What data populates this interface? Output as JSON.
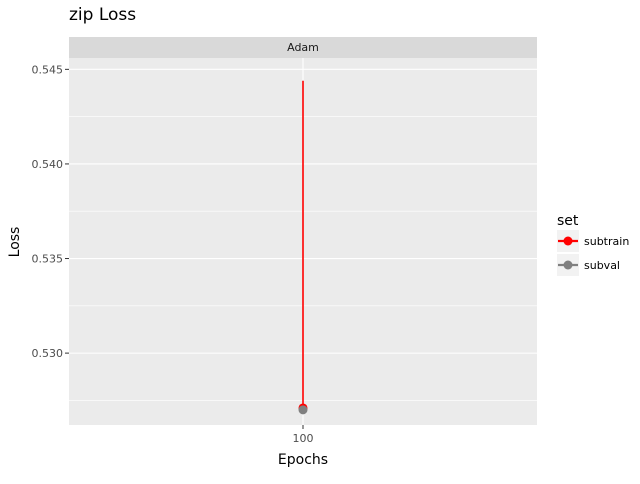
{
  "chart_data": {
    "type": "line",
    "title": "zip Loss",
    "facet_label": "Adam",
    "xlabel": "Epochs",
    "ylabel": "Loss",
    "x_categories": [
      "100"
    ],
    "ylim": [
      0.5262,
      0.5456
    ],
    "y_ticks": [
      0.53,
      0.535,
      0.54,
      0.545
    ],
    "y_tick_labels": [
      "0.530",
      "0.535",
      "0.540",
      "0.545"
    ],
    "grid": true,
    "legend_title": "set",
    "legend_position": "right",
    "series": [
      {
        "name": "subtrain",
        "color": "#ff0000",
        "line": {
          "x": "100",
          "y_from": 0.5444,
          "y_to": 0.5271
        },
        "points": [
          {
            "x": "100",
            "y": 0.5271
          }
        ]
      },
      {
        "name": "subval",
        "color": "#808080",
        "line": {
          "x": "100",
          "y_from": 0.5271,
          "y_to": 0.527
        },
        "points": [
          {
            "x": "100",
            "y": 0.527
          }
        ]
      }
    ]
  }
}
